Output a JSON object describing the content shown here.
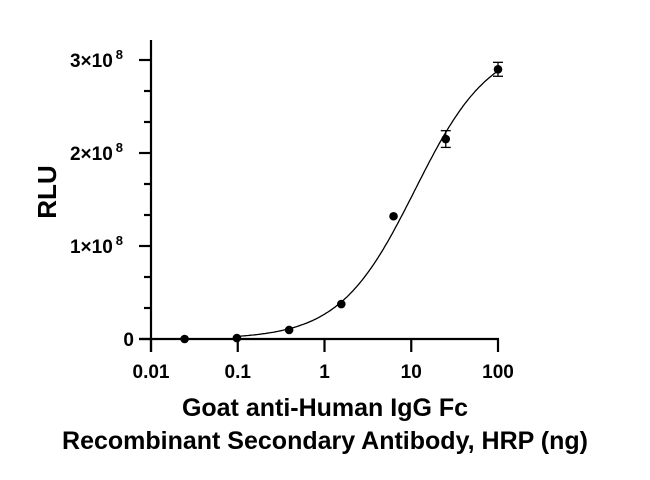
{
  "chart_data": {
    "type": "scatter",
    "title": "",
    "xlabel": "Goat anti-Human IgG Fc Recombinant Secondary Antibody, HRP (ng)",
    "xlabel_lines": [
      "Goat anti-Human IgG Fc",
      "Recombinant Secondary Antibody, HRP (ng)"
    ],
    "ylabel": "RLU",
    "xscale": "log",
    "xlim": [
      0.01,
      100
    ],
    "ylim": [
      0,
      300000000
    ],
    "x_ticks": [
      0.01,
      0.1,
      1,
      10,
      100
    ],
    "x_tick_labels": [
      "0.01",
      "0.1",
      "1",
      "10",
      "100"
    ],
    "y_ticks": [
      0,
      100000000,
      200000000,
      300000000
    ],
    "y_tick_labels": [
      {
        "base": "0",
        "exp": ""
      },
      {
        "base": "1×10",
        "exp": "8"
      },
      {
        "base": "2×10",
        "exp": "8"
      },
      {
        "base": "3×10",
        "exp": "8"
      }
    ],
    "grid": false,
    "legend": null,
    "series": [
      {
        "name": "RLU",
        "marker": "filled-circle",
        "color": "#000000",
        "x": [
          0.0244,
          0.0977,
          0.391,
          1.5625,
          6.25,
          25,
          100
        ],
        "y": [
          0,
          1000000,
          9700000,
          37600000,
          132000000,
          215000000,
          290000000
        ],
        "error": [
          0,
          0,
          0,
          0,
          0,
          9000000,
          7500000
        ]
      }
    ],
    "fit_curve": {
      "type": "4PL sigmoid",
      "bottom": 0,
      "top": 320000000,
      "ec50": 11,
      "hill": 1.0
    }
  }
}
